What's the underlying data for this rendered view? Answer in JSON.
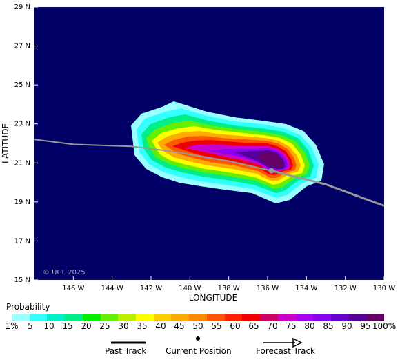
{
  "map": {
    "watermark": "© UCL 2025",
    "xlabel": "LONGITUDE",
    "ylabel": "LATITUDE",
    "lon_range": [
      -148,
      -130
    ],
    "lat_range": [
      15,
      29
    ],
    "lon_ticks": [
      "146 W",
      "144 W",
      "142 W",
      "140 W",
      "138 W",
      "136 W",
      "134 W",
      "132 W",
      "130 W"
    ],
    "lat_ticks": [
      "29 N",
      "27 N",
      "25 N",
      "23 N",
      "21 N",
      "19 N",
      "17 N",
      "15 N"
    ],
    "ocean_color": "#000066",
    "past_track": [
      [
        -148,
        22.2
      ],
      [
        -146,
        21.95
      ],
      [
        -143,
        21.85
      ],
      [
        -141,
        21.6
      ],
      [
        -138,
        21.1
      ],
      [
        -135.8,
        20.6
      ]
    ],
    "forecast_track": [
      [
        -135.8,
        20.6
      ],
      [
        -133,
        19.9
      ],
      [
        -130,
        18.8
      ]
    ],
    "current_position": [
      -135.8,
      20.6
    ],
    "track_color": "#999999"
  },
  "legend": {
    "title": "Probability",
    "labels": [
      "1%",
      "5",
      "10",
      "15",
      "20",
      "25",
      "30",
      "35",
      "40",
      "45",
      "50",
      "55",
      "60",
      "65",
      "70",
      "75",
      "80",
      "85",
      "90",
      "95",
      "100%"
    ],
    "colors": [
      "#99ffff",
      "#33ffff",
      "#00eecc",
      "#00ee88",
      "#00ee00",
      "#66ee00",
      "#bbee00",
      "#ffff00",
      "#ffcc00",
      "#ffaa00",
      "#ff8800",
      "#ff5500",
      "#ff2200",
      "#ee0000",
      "#cc0066",
      "#cc00cc",
      "#aa00ee",
      "#8800ee",
      "#6600cc",
      "#550099",
      "#660066"
    ],
    "past_track_label": "Past Track",
    "current_position_label": "Current Position",
    "forecast_track_label": "Forecast Track"
  }
}
